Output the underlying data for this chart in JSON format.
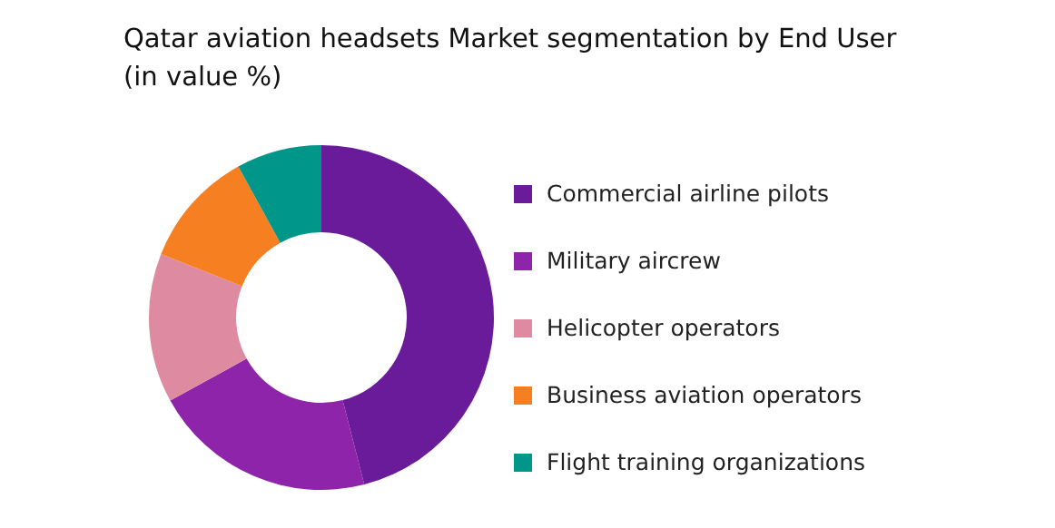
{
  "chart_data": {
    "type": "donut",
    "title": "Qatar aviation headsets Market segmentation by End User\n(in value %)",
    "categories": [
      "Commercial airline pilots",
      "Military aircrew",
      "Helicopter operators",
      "Business aviation operators",
      "Flight training organizations"
    ],
    "values": [
      46,
      21,
      14,
      11,
      8
    ],
    "colors": [
      "#6a1b9a",
      "#8e24aa",
      "#de8aa0",
      "#f57f21",
      "#00968a"
    ],
    "legend": "right"
  }
}
